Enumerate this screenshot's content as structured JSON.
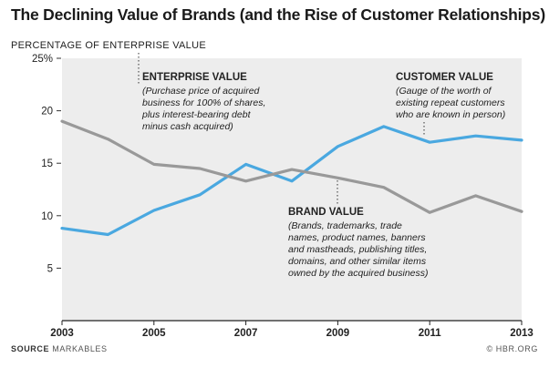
{
  "chart_data": {
    "type": "line",
    "title": "The Declining Value of Brands (and the Rise of Customer Relationships)",
    "ylabel": "PERCENTAGE OF ENTERPRISE VALUE",
    "xlabel": "",
    "ylim": [
      0,
      25
    ],
    "xlim": [
      2003,
      2013
    ],
    "y_ticks": [
      5,
      10,
      15,
      20,
      25
    ],
    "y_tick_labels": [
      "5",
      "10",
      "15",
      "20",
      "25%"
    ],
    "x_ticks": [
      2003,
      2005,
      2007,
      2009,
      2011,
      2013
    ],
    "x_tick_labels": [
      "2003",
      "2005",
      "2007",
      "2009",
      "2011",
      "2013"
    ],
    "grid": false,
    "x": [
      2003,
      2004,
      2005,
      2006,
      2007,
      2008,
      2009,
      2010,
      2011,
      2012,
      2013
    ],
    "series": [
      {
        "key": "customer",
        "color": "#4aa8e0",
        "values": [
          8.8,
          8.2,
          10.5,
          12.0,
          14.9,
          13.3,
          16.6,
          18.5,
          17.0,
          17.6,
          17.2
        ]
      },
      {
        "key": "brand",
        "color": "#999999",
        "values": [
          19.0,
          17.3,
          14.9,
          14.5,
          13.3,
          14.4,
          13.6,
          12.7,
          10.3,
          11.9,
          10.4
        ]
      }
    ],
    "annotations": [
      {
        "key": "enterprise",
        "title": "ENTERPRISE VALUE",
        "lines": [
          "(Purchase price of acquired",
          "business for 100% of shares,",
          "plus interest-bearing debt",
          "minus cash acquired)"
        ]
      },
      {
        "key": "customer",
        "title": "CUSTOMER VALUE",
        "lines": [
          "(Gauge of the worth of",
          "existing repeat customers",
          "who are known in person)"
        ]
      },
      {
        "key": "brand",
        "title": "BRAND VALUE",
        "lines": [
          "(Brands, trademarks, trade",
          "names, product names, banners",
          "and mastheads, publishing titles,",
          "domains, and other similar items",
          "owned by the acquired business)"
        ]
      }
    ]
  },
  "footer": {
    "source_label": "SOURCE",
    "source_value": "MARKABLES",
    "credit": "© HBR.ORG"
  }
}
